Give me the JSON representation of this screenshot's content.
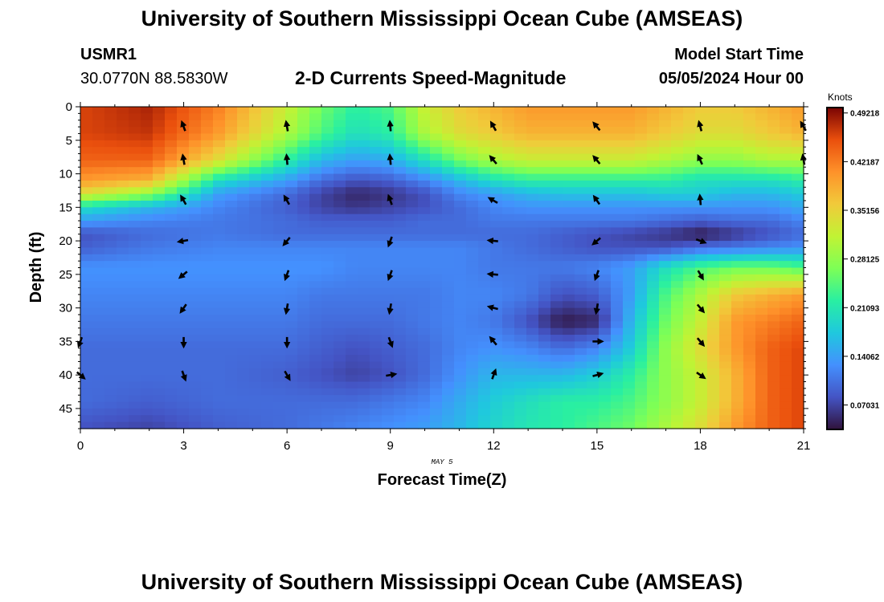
{
  "header": {
    "title": "University of Southern Mississippi Ocean Cube (AMSEAS)",
    "station_id": "USMR1",
    "coordinates": "30.0770N  88.5830W",
    "chart_title": "2-D Currents Speed-Magnitude",
    "model_start_label": "Model Start Time",
    "model_start_value": "05/05/2024 Hour 00"
  },
  "footer": {
    "title": "University of Southern Mississippi Ocean Cube (AMSEAS)"
  },
  "chart_data": {
    "type": "heatmap",
    "title": "2-D Currents Speed-Magnitude",
    "xlabel": "Forecast Time(Z)",
    "ylabel": "Depth (ft)",
    "date_label": "MAY 5",
    "xlim": [
      0,
      21
    ],
    "ylim": [
      0,
      48
    ],
    "x_ticks": [
      0,
      3,
      6,
      9,
      12,
      15,
      18,
      21
    ],
    "y_ticks": [
      0,
      5,
      10,
      15,
      20,
      25,
      30,
      35,
      40,
      45
    ],
    "colorbar": {
      "label": "Knots",
      "min": 0.035,
      "max": 0.5,
      "tick_labels": [
        "0.49218",
        "0.42187",
        "0.35156",
        "0.28125",
        "0.21093",
        "0.14062",
        "0.07031"
      ],
      "tick_values": [
        0.49218,
        0.42187,
        0.35156,
        0.28125,
        0.21093,
        0.14062,
        0.07031
      ]
    },
    "grid_spacing": {
      "dt_hours": 0.35,
      "dz_ft": 1.0
    },
    "speed_anchors": {
      "times": [
        0,
        2,
        4,
        6,
        7,
        8,
        9,
        10,
        11,
        12,
        13,
        14,
        15,
        16,
        17,
        18,
        19,
        20,
        21
      ],
      "depths": [
        0,
        4,
        8,
        11,
        13,
        15,
        17,
        19,
        21,
        24,
        28,
        32,
        36,
        40,
        44,
        48
      ],
      "values": [
        [
          0.46,
          0.48,
          0.42,
          0.32,
          0.26,
          0.22,
          0.24,
          0.32,
          0.36,
          0.38,
          0.4,
          0.4,
          0.4,
          0.4,
          0.38,
          0.36,
          0.36,
          0.38,
          0.4
        ],
        [
          0.46,
          0.47,
          0.4,
          0.3,
          0.24,
          0.2,
          0.22,
          0.3,
          0.34,
          0.36,
          0.38,
          0.38,
          0.38,
          0.38,
          0.36,
          0.34,
          0.34,
          0.36,
          0.38
        ],
        [
          0.44,
          0.44,
          0.34,
          0.22,
          0.16,
          0.14,
          0.15,
          0.2,
          0.26,
          0.3,
          0.32,
          0.32,
          0.32,
          0.32,
          0.3,
          0.28,
          0.28,
          0.3,
          0.3
        ],
        [
          0.4,
          0.38,
          0.2,
          0.14,
          0.1,
          0.08,
          0.09,
          0.12,
          0.16,
          0.2,
          0.22,
          0.22,
          0.22,
          0.22,
          0.22,
          0.2,
          0.2,
          0.2,
          0.22
        ],
        [
          0.34,
          0.28,
          0.14,
          0.1,
          0.07,
          0.05,
          0.06,
          0.08,
          0.12,
          0.14,
          0.16,
          0.17,
          0.17,
          0.17,
          0.18,
          0.18,
          0.16,
          0.16,
          0.18
        ],
        [
          0.2,
          0.16,
          0.12,
          0.09,
          0.07,
          0.06,
          0.07,
          0.08,
          0.1,
          0.12,
          0.13,
          0.13,
          0.13,
          0.13,
          0.13,
          0.13,
          0.13,
          0.13,
          0.15
        ],
        [
          0.14,
          0.12,
          0.11,
          0.1,
          0.09,
          0.09,
          0.09,
          0.1,
          0.1,
          0.11,
          0.11,
          0.11,
          0.11,
          0.11,
          0.1,
          0.09,
          0.1,
          0.1,
          0.12
        ],
        [
          0.08,
          0.1,
          0.11,
          0.1,
          0.1,
          0.1,
          0.1,
          0.1,
          0.1,
          0.1,
          0.1,
          0.09,
          0.08,
          0.07,
          0.06,
          0.04,
          0.06,
          0.08,
          0.1
        ],
        [
          0.09,
          0.11,
          0.12,
          0.12,
          0.12,
          0.12,
          0.12,
          0.12,
          0.12,
          0.11,
          0.1,
          0.09,
          0.08,
          0.08,
          0.08,
          0.1,
          0.11,
          0.12,
          0.13
        ],
        [
          0.13,
          0.13,
          0.13,
          0.13,
          0.13,
          0.12,
          0.12,
          0.12,
          0.12,
          0.11,
          0.11,
          0.11,
          0.12,
          0.14,
          0.2,
          0.24,
          0.26,
          0.26,
          0.24
        ],
        [
          0.12,
          0.12,
          0.12,
          0.12,
          0.11,
          0.11,
          0.11,
          0.11,
          0.12,
          0.12,
          0.11,
          0.08,
          0.09,
          0.14,
          0.24,
          0.3,
          0.36,
          0.38,
          0.4
        ],
        [
          0.11,
          0.11,
          0.11,
          0.11,
          0.1,
          0.1,
          0.1,
          0.11,
          0.12,
          0.11,
          0.08,
          0.04,
          0.05,
          0.16,
          0.26,
          0.32,
          0.4,
          0.42,
          0.44
        ],
        [
          0.1,
          0.1,
          0.1,
          0.1,
          0.09,
          0.08,
          0.09,
          0.1,
          0.12,
          0.13,
          0.12,
          0.1,
          0.12,
          0.18,
          0.28,
          0.34,
          0.4,
          0.44,
          0.46
        ],
        [
          0.1,
          0.1,
          0.1,
          0.09,
          0.08,
          0.07,
          0.08,
          0.1,
          0.13,
          0.16,
          0.16,
          0.16,
          0.18,
          0.22,
          0.28,
          0.32,
          0.38,
          0.44,
          0.46
        ],
        [
          0.1,
          0.09,
          0.1,
          0.1,
          0.1,
          0.1,
          0.11,
          0.12,
          0.15,
          0.18,
          0.2,
          0.22,
          0.22,
          0.24,
          0.28,
          0.32,
          0.38,
          0.44,
          0.46
        ],
        [
          0.08,
          0.07,
          0.09,
          0.1,
          0.11,
          0.12,
          0.13,
          0.14,
          0.16,
          0.19,
          0.21,
          0.22,
          0.24,
          0.26,
          0.3,
          0.34,
          0.4,
          0.44,
          0.46
        ]
      ]
    },
    "vectors": {
      "times": [
        3,
        6,
        9,
        12,
        15,
        18
      ],
      "depths": [
        3,
        8,
        14,
        20,
        25,
        30,
        35,
        40
      ],
      "directions_deg": [
        [
          340,
          350,
          355,
          330,
          320,
          345
        ],
        [
          350,
          355,
          355,
          320,
          320,
          335
        ],
        [
          330,
          330,
          340,
          300,
          325,
          355
        ],
        [
          260,
          220,
          200,
          275,
          230,
          110
        ],
        [
          230,
          200,
          200,
          275,
          200,
          150
        ],
        [
          215,
          190,
          190,
          285,
          190,
          140
        ],
        [
          180,
          180,
          160,
          320,
          90,
          140
        ],
        [
          160,
          150,
          80,
          20,
          75,
          125
        ]
      ],
      "edge_arrows": [
        {
          "t": 0,
          "z": 35,
          "dir": 200
        },
        {
          "t": 0,
          "z": 40,
          "dir": 130
        },
        {
          "t": 21,
          "z": 3,
          "dir": 330
        },
        {
          "t": 21,
          "z": 8,
          "dir": 350
        }
      ]
    }
  }
}
